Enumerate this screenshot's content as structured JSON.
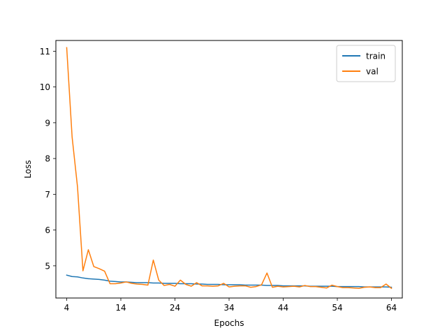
{
  "chart_data": {
    "type": "line",
    "title": "",
    "xlabel": "Epochs",
    "ylabel": "Loss",
    "xlim": [
      2.0,
      66.0
    ],
    "ylim": [
      4.1,
      11.3
    ],
    "xticks": [
      4,
      14,
      24,
      34,
      44,
      54,
      64
    ],
    "yticks": [
      5,
      6,
      7,
      8,
      9,
      10,
      11
    ],
    "grid": false,
    "legend_position": "top-right",
    "series": [
      {
        "name": "train",
        "color": "#1f77b4",
        "x": [
          4,
          5,
          6,
          7,
          8,
          9,
          10,
          11,
          12,
          13,
          14,
          15,
          16,
          17,
          18,
          19,
          20,
          21,
          22,
          23,
          24,
          25,
          26,
          27,
          28,
          29,
          30,
          31,
          32,
          33,
          34,
          35,
          36,
          37,
          38,
          39,
          40,
          41,
          42,
          43,
          44,
          45,
          46,
          47,
          48,
          49,
          50,
          51,
          52,
          53,
          54,
          55,
          56,
          57,
          58,
          59,
          60,
          61,
          62,
          63,
          64
        ],
        "values": [
          4.74,
          4.7,
          4.69,
          4.66,
          4.64,
          4.63,
          4.62,
          4.6,
          4.57,
          4.56,
          4.55,
          4.55,
          4.54,
          4.53,
          4.53,
          4.53,
          4.52,
          4.52,
          4.51,
          4.51,
          4.51,
          4.5,
          4.5,
          4.5,
          4.49,
          4.49,
          4.48,
          4.48,
          4.48,
          4.47,
          4.47,
          4.47,
          4.47,
          4.46,
          4.46,
          4.46,
          4.46,
          4.45,
          4.45,
          4.45,
          4.44,
          4.44,
          4.44,
          4.44,
          4.44,
          4.43,
          4.43,
          4.43,
          4.43,
          4.43,
          4.42,
          4.42,
          4.42,
          4.42,
          4.42,
          4.41,
          4.41,
          4.41,
          4.41,
          4.41,
          4.4
        ]
      },
      {
        "name": "val",
        "color": "#ff7f0e",
        "x": [
          4,
          5,
          6,
          7,
          8,
          9,
          10,
          11,
          12,
          13,
          14,
          15,
          16,
          17,
          18,
          19,
          20,
          21,
          22,
          23,
          24,
          25,
          26,
          27,
          28,
          29,
          30,
          31,
          32,
          33,
          34,
          35,
          36,
          37,
          38,
          39,
          40,
          41,
          42,
          43,
          44,
          45,
          46,
          47,
          48,
          49,
          50,
          51,
          52,
          53,
          54,
          55,
          56,
          57,
          58,
          59,
          60,
          61,
          62,
          63,
          64
        ],
        "values": [
          11.1,
          8.6,
          7.2,
          4.86,
          5.45,
          4.98,
          4.92,
          4.85,
          4.5,
          4.5,
          4.52,
          4.55,
          4.51,
          4.49,
          4.48,
          4.46,
          5.16,
          4.6,
          4.45,
          4.48,
          4.43,
          4.6,
          4.48,
          4.43,
          4.53,
          4.44,
          4.44,
          4.43,
          4.44,
          4.51,
          4.41,
          4.43,
          4.44,
          4.44,
          4.4,
          4.42,
          4.47,
          4.8,
          4.4,
          4.43,
          4.41,
          4.42,
          4.43,
          4.41,
          4.45,
          4.42,
          4.42,
          4.4,
          4.38,
          4.46,
          4.42,
          4.39,
          4.39,
          4.38,
          4.37,
          4.4,
          4.41,
          4.39,
          4.39,
          4.49,
          4.37
        ]
      }
    ]
  }
}
